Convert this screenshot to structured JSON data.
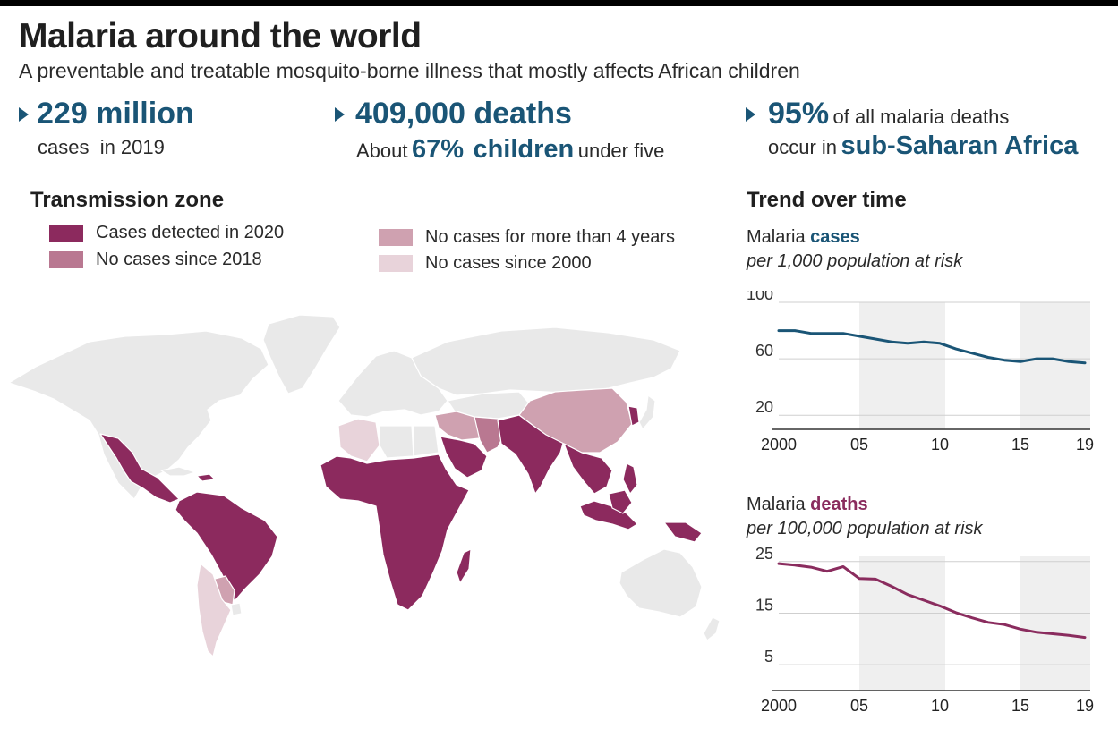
{
  "header": {
    "title": "Malaria around the world",
    "subtitle": "A preventable and treatable mosquito-borne illness that mostly affects African children"
  },
  "stats": {
    "cases": {
      "value": "229 million",
      "caption": "cases  in 2019"
    },
    "deaths": {
      "value": "409,000 deaths",
      "prefix": "About",
      "percent": "67%",
      "group": "children",
      "suffix": "under five"
    },
    "africa": {
      "value": "95%",
      "text1": "of all malaria deaths",
      "text2": "occur in",
      "region": "sub-Saharan Africa"
    }
  },
  "map": {
    "title": "Transmission zone",
    "legend": [
      {
        "label": "Cases detected in 2020",
        "color": "#8c2a5e"
      },
      {
        "label": "No cases since 2018",
        "color": "#b97891"
      },
      {
        "label": "No cases for  more than 4 years",
        "color": "#cfa1b0"
      },
      {
        "label": "No cases since 2000",
        "color": "#e8d3da"
      }
    ],
    "land_color": "#e9e9e9",
    "border_color": "#ffffff"
  },
  "trend": {
    "title": "Trend over time"
  },
  "colors": {
    "accent_blue": "#1a5576",
    "accent_purple": "#8a2c5e",
    "shade": "#efefef",
    "grid": "#cfcfcf"
  },
  "chart_data": [
    {
      "type": "line",
      "title_prefix": "Malaria",
      "title_highlight": "cases",
      "subtitle": "per 1,000 population at risk",
      "series": [
        {
          "x": [
            2000,
            2001,
            2002,
            2003,
            2004,
            2005,
            2006,
            2007,
            2008,
            2009,
            2010,
            2011,
            2012,
            2013,
            2014,
            2015,
            2016,
            2017,
            2018,
            2019
          ],
          "values": [
            80,
            80,
            78,
            78,
            78,
            76,
            74,
            72,
            71,
            72,
            71,
            67,
            64,
            61,
            59,
            58,
            60,
            60,
            58,
            57
          ],
          "color": "#1a5576"
        }
      ],
      "xlim": [
        2000,
        2019
      ],
      "ylim": [
        10,
        100
      ],
      "yticks": [
        100,
        60,
        20
      ],
      "xtick_values": [
        2000,
        2005,
        2010,
        2015,
        2019
      ],
      "xtick_labels": [
        "2000",
        "05",
        "10",
        "15",
        "19"
      ],
      "shaded_ranges": [
        [
          2005,
          2010
        ],
        [
          2015,
          2019
        ]
      ],
      "grid": true
    },
    {
      "type": "line",
      "title_prefix": "Malaria",
      "title_highlight": "deaths",
      "subtitle": "per 100,000 population at risk",
      "series": [
        {
          "x": [
            2000,
            2001,
            2002,
            2003,
            2004,
            2005,
            2006,
            2007,
            2008,
            2009,
            2010,
            2011,
            2012,
            2013,
            2014,
            2015,
            2016,
            2017,
            2018,
            2019
          ],
          "values": [
            24.6,
            24.3,
            23.9,
            23.1,
            24.0,
            21.7,
            21.6,
            20.2,
            18.6,
            17.5,
            16.4,
            15.1,
            14.1,
            13.2,
            12.8,
            11.9,
            11.3,
            11.0,
            10.7,
            10.3
          ],
          "color": "#8a2c5e"
        }
      ],
      "xlim": [
        2000,
        2019
      ],
      "ylim": [
        0,
        26
      ],
      "yticks": [
        25,
        15,
        5
      ],
      "xtick_values": [
        2000,
        2005,
        2010,
        2015,
        2019
      ],
      "xtick_labels": [
        "2000",
        "05",
        "10",
        "15",
        "19"
      ],
      "shaded_ranges": [
        [
          2005,
          2010
        ],
        [
          2015,
          2019
        ]
      ],
      "grid": true
    }
  ]
}
